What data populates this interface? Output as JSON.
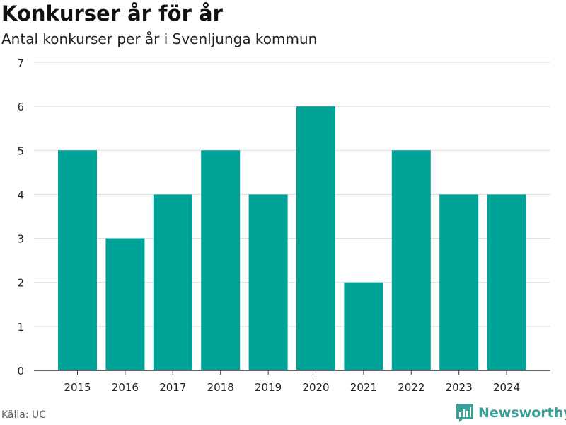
{
  "header": {
    "title": "Konkurser år för år",
    "subtitle": "Antal konkurser per år i Svenljunga kommun"
  },
  "footer": {
    "source": "Källa: UC",
    "brand": "Newsworthy",
    "brand_icon": "bar-chart-logo-icon",
    "brand_color": "#3a9e97"
  },
  "colors": {
    "bar": "#00a398",
    "grid": "#dddddd",
    "axis": "#333333",
    "text": "#222222"
  },
  "chart_data": {
    "type": "bar",
    "categories": [
      "2015",
      "2016",
      "2017",
      "2018",
      "2019",
      "2020",
      "2021",
      "2022",
      "2023",
      "2024"
    ],
    "values": [
      5,
      3,
      4,
      5,
      4,
      6,
      2,
      5,
      4,
      4
    ],
    "title": "Konkurser år för år",
    "subtitle": "Antal konkurser per år i Svenljunga kommun",
    "xlabel": "",
    "ylabel": "",
    "ylim": [
      0,
      7
    ],
    "yticks": [
      0,
      1,
      2,
      3,
      4,
      5,
      6,
      7
    ],
    "grid": true,
    "legend": "none"
  }
}
